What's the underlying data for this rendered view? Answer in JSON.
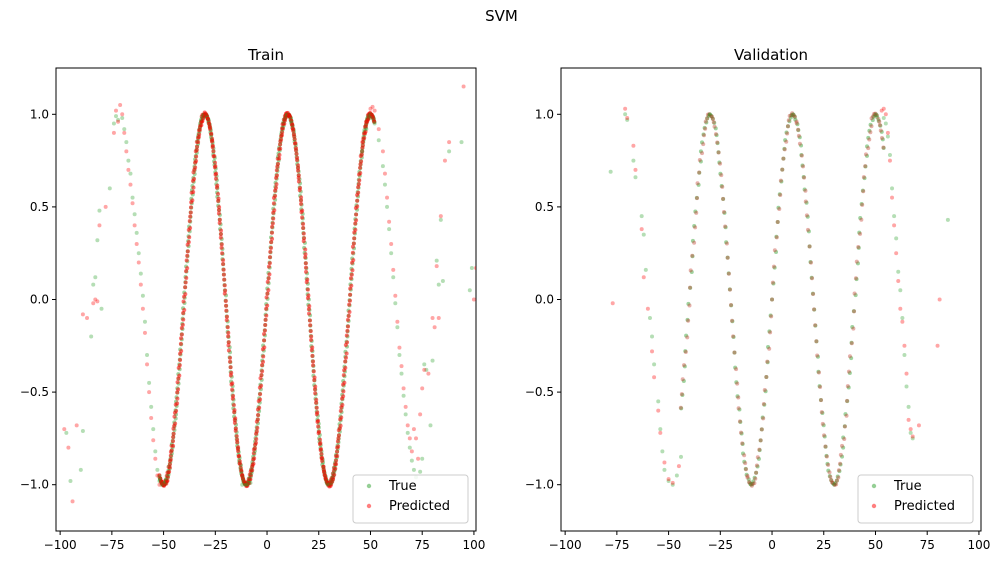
{
  "figure": {
    "suptitle": "SVM"
  },
  "colors": {
    "true": "#2ca02c",
    "predicted": "#ff0000"
  },
  "chart_data": [
    {
      "type": "scatter",
      "title": "Train",
      "xlim": [
        -102,
        101
      ],
      "ylim": [
        -1.25,
        1.25
      ],
      "xticks": [
        -100,
        -75,
        -50,
        -25,
        0,
        25,
        50,
        75,
        100
      ],
      "yticks": [
        -1.0,
        -0.5,
        0.0,
        0.5,
        1.0
      ],
      "legend": {
        "placement": "lower-right",
        "entries": [
          "True",
          "Predicted"
        ]
      },
      "series": [
        {
          "name": "True",
          "color": "#2ca02c",
          "points": [
            [
              -97,
              -0.72
            ],
            [
              -95,
              -0.98
            ],
            [
              -90,
              -0.92
            ],
            [
              -89,
              -0.71
            ],
            [
              -85,
              -0.2
            ],
            [
              -84,
              0.08
            ],
            [
              -83,
              0.12
            ],
            [
              -82,
              0.32
            ],
            [
              -81,
              0.48
            ],
            [
              -80,
              -0.05
            ],
            [
              -76,
              0.6
            ],
            [
              -74,
              0.95
            ],
            [
              -73,
              0.99
            ],
            [
              -72,
              0.97
            ],
            [
              -70,
              0.98
            ],
            [
              -69,
              0.92
            ],
            [
              -68,
              0.85
            ],
            [
              -67,
              0.75
            ],
            [
              -66,
              0.68
            ],
            [
              -65,
              0.55
            ],
            [
              -64,
              0.46
            ],
            [
              -63,
              0.36
            ],
            [
              -62,
              0.25
            ],
            [
              -61,
              0.14
            ],
            [
              -60,
              0.02
            ],
            [
              -59,
              -0.12
            ],
            [
              -58,
              -0.3
            ],
            [
              -57,
              -0.45
            ],
            [
              -56,
              -0.58
            ],
            [
              -55,
              -0.7
            ],
            [
              -54,
              -0.82
            ],
            [
              -53,
              -0.92
            ],
            [
              -52,
              -0.98
            ],
            [
              -51,
              -1.0
            ],
            [
              -50,
              -0.99
            ],
            [
              -12,
              -1.0
            ],
            [
              -10,
              -1.0
            ],
            [
              -8,
              -0.99
            ],
            [
              46,
              0.8
            ],
            [
              48,
              0.92
            ],
            [
              50,
              0.98
            ],
            [
              52,
              0.95
            ],
            [
              54,
              0.86
            ],
            [
              56,
              0.72
            ],
            [
              57,
              0.62
            ],
            [
              58,
              0.5
            ],
            [
              59,
              0.38
            ],
            [
              60,
              0.25
            ],
            [
              61,
              0.12
            ],
            [
              62,
              -0.02
            ],
            [
              63,
              -0.15
            ],
            [
              64,
              -0.3
            ],
            [
              65,
              -0.4
            ],
            [
              66,
              -0.52
            ],
            [
              67,
              -0.62
            ],
            [
              68,
              -0.72
            ],
            [
              69,
              -0.8
            ],
            [
              70,
              -0.87
            ],
            [
              71,
              -0.92
            ],
            [
              72,
              -0.96
            ],
            [
              74,
              -0.93
            ],
            [
              75,
              -0.86
            ],
            [
              76,
              -0.35
            ],
            [
              77,
              -0.38
            ],
            [
              79,
              -0.68
            ],
            [
              80,
              -0.33
            ],
            [
              82,
              0.21
            ],
            [
              83,
              0.08
            ],
            [
              84,
              0.43
            ],
            [
              85,
              0.1
            ],
            [
              88,
              0.8
            ],
            [
              94,
              0.85
            ],
            [
              98,
              0.05
            ],
            [
              99,
              0.17
            ]
          ]
        },
        {
          "name": "Predicted",
          "color": "#ff0000",
          "points": [
            [
              -98,
              -0.7
            ],
            [
              -96,
              -0.8
            ],
            [
              -94,
              -1.09
            ],
            [
              -92,
              -0.68
            ],
            [
              -89,
              -0.08
            ],
            [
              -87,
              -0.1
            ],
            [
              -84,
              -0.02
            ],
            [
              -83,
              0.0
            ],
            [
              -82,
              -0.01
            ],
            [
              -81,
              0.4
            ],
            [
              -78,
              0.5
            ],
            [
              -74,
              0.9
            ],
            [
              -73,
              1.02
            ],
            [
              -72,
              0.96
            ],
            [
              -71,
              1.05
            ],
            [
              -70,
              1.0
            ],
            [
              -69,
              0.9
            ],
            [
              -68,
              0.8
            ],
            [
              -67,
              0.7
            ],
            [
              -66,
              0.62
            ],
            [
              -65,
              0.52
            ],
            [
              -64,
              0.4
            ],
            [
              -63,
              0.3
            ],
            [
              -62,
              0.2
            ],
            [
              -61,
              0.08
            ],
            [
              -60,
              -0.05
            ],
            [
              -59,
              -0.18
            ],
            [
              -58,
              -0.35
            ],
            [
              -57,
              -0.5
            ],
            [
              -56,
              -0.64
            ],
            [
              -55,
              -0.76
            ],
            [
              -54,
              -0.86
            ],
            [
              -53,
              -0.95
            ],
            [
              -52,
              -1.0
            ],
            [
              -51,
              -0.99
            ],
            [
              -50,
              -1.0
            ],
            [
              46,
              0.85
            ],
            [
              48,
              0.96
            ],
            [
              50,
              1.03
            ],
            [
              51,
              1.04
            ],
            [
              52,
              1.02
            ],
            [
              54,
              0.92
            ],
            [
              56,
              0.8
            ],
            [
              57,
              0.68
            ],
            [
              58,
              0.55
            ],
            [
              59,
              0.42
            ],
            [
              60,
              0.3
            ],
            [
              61,
              0.16
            ],
            [
              62,
              0.02
            ],
            [
              63,
              -0.12
            ],
            [
              64,
              -0.26
            ],
            [
              65,
              -0.36
            ],
            [
              66,
              -0.48
            ],
            [
              67,
              -0.58
            ],
            [
              68,
              -0.68
            ],
            [
              69,
              -0.75
            ],
            [
              70,
              -0.82
            ],
            [
              71,
              -0.7
            ],
            [
              72,
              -0.75
            ],
            [
              73,
              -0.86
            ],
            [
              74,
              -0.62
            ],
            [
              75,
              -0.48
            ],
            [
              76,
              -0.38
            ],
            [
              78,
              -0.4
            ],
            [
              80,
              -0.1
            ],
            [
              81,
              -0.15
            ],
            [
              82,
              0.18
            ],
            [
              83,
              -0.1
            ],
            [
              84,
              0.45
            ],
            [
              86,
              0.75
            ],
            [
              88,
              0.85
            ],
            [
              95,
              1.15
            ],
            [
              100,
              0.0
            ],
            [
              101,
              0.17
            ]
          ]
        }
      ],
      "curves": {
        "x_range": [
          -52,
          52
        ],
        "amplitude": 1.0,
        "period": 40,
        "phase_peak_x": 10
      }
    },
    {
      "type": "scatter",
      "title": "Validation",
      "xlim": [
        -102,
        101
      ],
      "ylim": [
        -1.25,
        1.25
      ],
      "xticks": [
        -100,
        -75,
        -50,
        -25,
        0,
        25,
        50,
        75,
        100
      ],
      "yticks": [
        -1.0,
        -0.5,
        0.0,
        0.5,
        1.0
      ],
      "legend": {
        "placement": "lower-right",
        "entries": [
          "True",
          "Predicted"
        ]
      },
      "series": [
        {
          "name": "True",
          "color": "#2ca02c",
          "points": [
            [
              -78,
              0.69
            ],
            [
              -71,
              1.0
            ],
            [
              -70,
              0.97
            ],
            [
              -67,
              0.75
            ],
            [
              -66,
              0.66
            ],
            [
              -63,
              0.45
            ],
            [
              -62,
              0.35
            ],
            [
              -61,
              0.16
            ],
            [
              -59,
              -0.1
            ],
            [
              -58,
              -0.2
            ],
            [
              -57,
              -0.35
            ],
            [
              -55,
              -0.55
            ],
            [
              -54,
              -0.7
            ],
            [
              -53,
              -0.82
            ],
            [
              -52,
              -0.92
            ],
            [
              -50,
              -0.98
            ],
            [
              -48,
              -1.0
            ],
            [
              -46,
              -0.95
            ],
            [
              -44,
              -0.85
            ],
            [
              54,
              0.98
            ],
            [
              55,
              0.95
            ],
            [
              56,
              0.88
            ],
            [
              57,
              0.78
            ],
            [
              58,
              0.6
            ],
            [
              59,
              0.45
            ],
            [
              60,
              0.33
            ],
            [
              61,
              0.15
            ],
            [
              62,
              0.05
            ],
            [
              63,
              -0.1
            ],
            [
              64,
              -0.3
            ],
            [
              65,
              -0.47
            ],
            [
              66,
              -0.58
            ],
            [
              67,
              -0.72
            ],
            [
              68,
              -0.75
            ],
            [
              85,
              0.43
            ]
          ]
        },
        {
          "name": "Predicted",
          "color": "#ff0000",
          "points": [
            [
              -77,
              -0.02
            ],
            [
              -71,
              1.03
            ],
            [
              -70,
              0.98
            ],
            [
              -67,
              0.83
            ],
            [
              -66,
              0.7
            ],
            [
              -63,
              0.38
            ],
            [
              -62,
              0.12
            ],
            [
              -60,
              -0.05
            ],
            [
              -58,
              -0.28
            ],
            [
              -57,
              -0.42
            ],
            [
              -55,
              -0.6
            ],
            [
              -54,
              -0.72
            ],
            [
              -52,
              -0.88
            ],
            [
              -50,
              -0.97
            ],
            [
              -48,
              -0.99
            ],
            [
              -45,
              -0.9
            ],
            [
              53,
              1.02
            ],
            [
              54,
              1.03
            ],
            [
              55,
              1.0
            ],
            [
              56,
              0.9
            ],
            [
              57,
              0.75
            ],
            [
              58,
              0.55
            ],
            [
              59,
              0.4
            ],
            [
              60,
              0.25
            ],
            [
              61,
              0.1
            ],
            [
              62,
              -0.05
            ],
            [
              63,
              -0.12
            ],
            [
              64,
              -0.25
            ],
            [
              65,
              -0.4
            ],
            [
              66,
              -0.65
            ],
            [
              67,
              -0.7
            ],
            [
              68,
              -0.74
            ],
            [
              71,
              -0.68
            ],
            [
              80,
              -0.25
            ],
            [
              81,
              0.0
            ]
          ]
        }
      ],
      "curves": {
        "x_range": [
          -44,
          54
        ],
        "amplitude": 1.0,
        "period": 40,
        "phase_peak_x": 10
      }
    }
  ]
}
